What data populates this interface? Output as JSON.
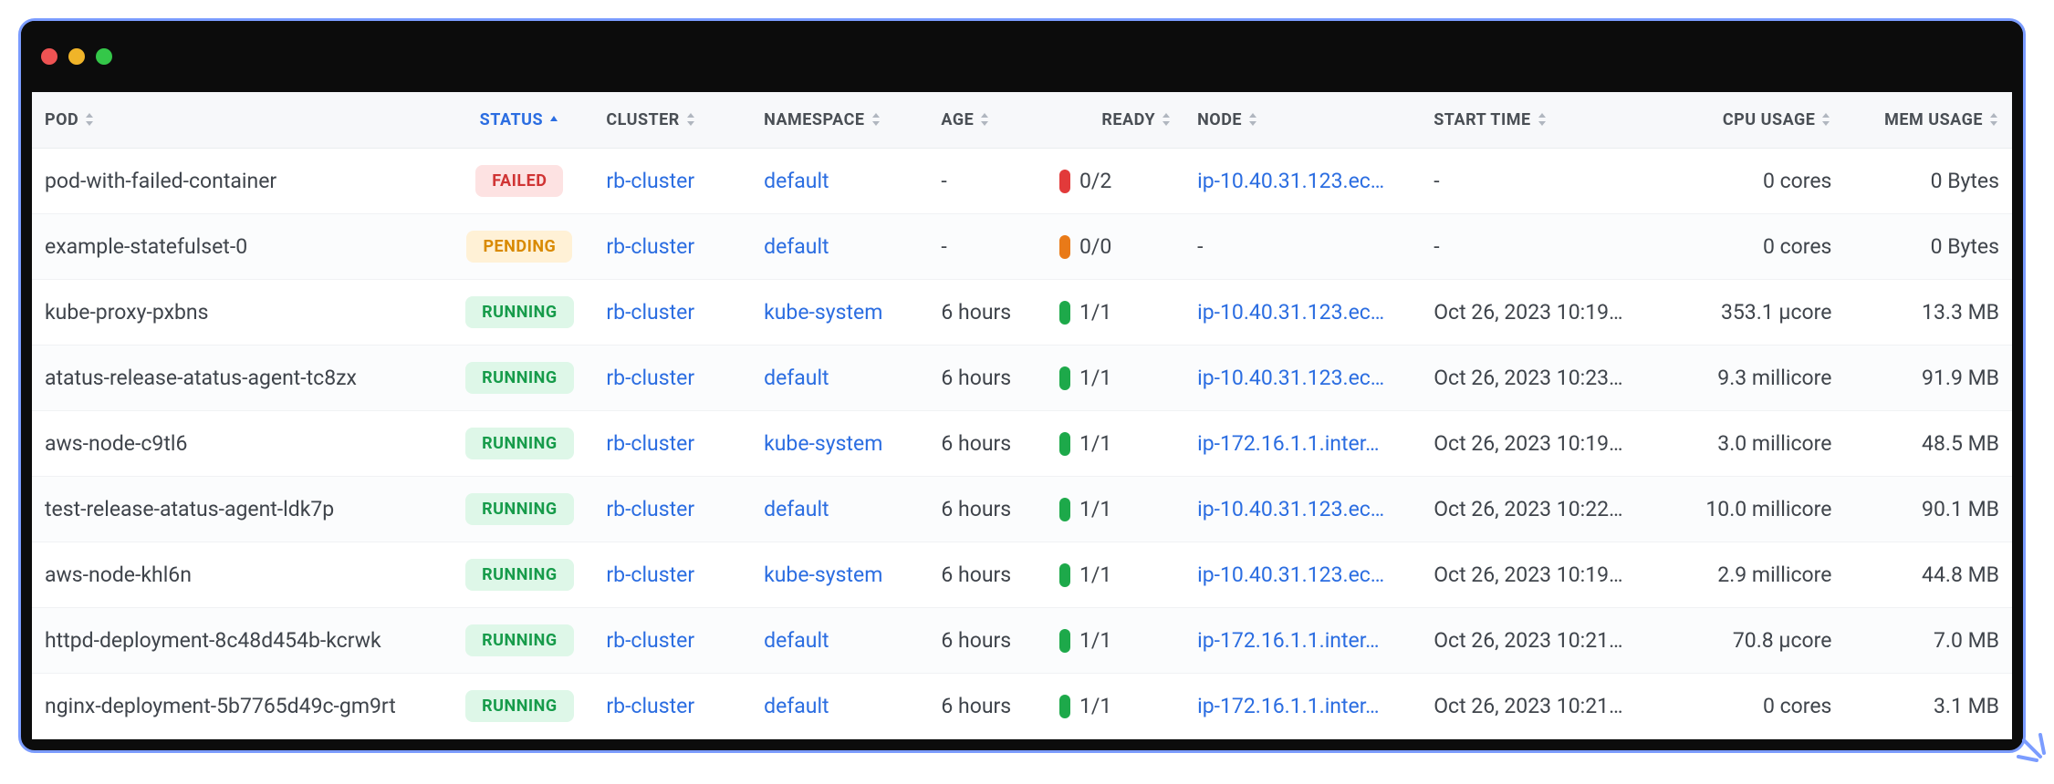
{
  "window": {
    "dot_colors": {
      "red": "#ee5353",
      "yellow": "#f0b429",
      "green": "#34c749"
    }
  },
  "columns": [
    {
      "key": "pod",
      "label": "POD",
      "class": "col-pod",
      "sorted": false
    },
    {
      "key": "status",
      "label": "STATUS",
      "class": "col-status",
      "sorted": "asc"
    },
    {
      "key": "cluster",
      "label": "CLUSTER",
      "class": "col-cluster",
      "sorted": false
    },
    {
      "key": "namespace",
      "label": "NAMESPACE",
      "class": "col-namespace",
      "sorted": false
    },
    {
      "key": "age",
      "label": "AGE",
      "class": "col-age",
      "sorted": false
    },
    {
      "key": "ready",
      "label": "READY",
      "class": "col-ready",
      "sorted": false
    },
    {
      "key": "node",
      "label": "NODE",
      "class": "col-node",
      "sorted": false
    },
    {
      "key": "start",
      "label": "START TIME",
      "class": "col-start",
      "sorted": false
    },
    {
      "key": "cpu",
      "label": "CPU USAGE",
      "class": "col-cpu",
      "sorted": false
    },
    {
      "key": "mem",
      "label": "MEM USAGE",
      "class": "col-mem",
      "sorted": false
    }
  ],
  "status_styles": {
    "FAILED": {
      "bg": "#fde2e2",
      "fg": "#d03434"
    },
    "PENDING": {
      "bg": "#fff1d6",
      "fg": "#d98a00"
    },
    "RUNNING": {
      "bg": "#def7e8",
      "fg": "#169b4a"
    }
  },
  "ready_pill_colors": {
    "red": "#e23a3a",
    "orange": "#e97a18",
    "green": "#1da94a"
  },
  "rows": [
    {
      "pod": "pod-with-failed-container",
      "status": "FAILED",
      "cluster": "rb-cluster",
      "namespace": "default",
      "age": "-",
      "ready": "0/2",
      "ready_color": "red",
      "node": "ip-10.40.31.123.ec…",
      "start": "-",
      "cpu": "0 cores",
      "mem": "0 Bytes"
    },
    {
      "pod": "example-statefulset-0",
      "status": "PENDING",
      "cluster": "rb-cluster",
      "namespace": "default",
      "age": "-",
      "ready": "0/0",
      "ready_color": "orange",
      "node": "-",
      "start": "-",
      "cpu": "0 cores",
      "mem": "0 Bytes"
    },
    {
      "pod": "kube-proxy-pxbns",
      "status": "RUNNING",
      "cluster": "rb-cluster",
      "namespace": "kube-system",
      "age": "6 hours",
      "ready": "1/1",
      "ready_color": "green",
      "node": "ip-10.40.31.123.ec…",
      "start": "Oct 26, 2023 10:19…",
      "cpu": "353.1 µcore",
      "mem": "13.3 MB"
    },
    {
      "pod": "atatus-release-atatus-agent-tc8zx",
      "status": "RUNNING",
      "cluster": "rb-cluster",
      "namespace": "default",
      "age": "6 hours",
      "ready": "1/1",
      "ready_color": "green",
      "node": "ip-10.40.31.123.ec…",
      "start": "Oct 26, 2023 10:23…",
      "cpu": "9.3 millicore",
      "mem": "91.9 MB"
    },
    {
      "pod": "aws-node-c9tl6",
      "status": "RUNNING",
      "cluster": "rb-cluster",
      "namespace": "kube-system",
      "age": "6 hours",
      "ready": "1/1",
      "ready_color": "green",
      "node": "ip-172.16.1.1.inter…",
      "start": "Oct 26, 2023 10:19…",
      "cpu": "3.0 millicore",
      "mem": "48.5 MB"
    },
    {
      "pod": "test-release-atatus-agent-ldk7p",
      "status": "RUNNING",
      "cluster": "rb-cluster",
      "namespace": "default",
      "age": "6 hours",
      "ready": "1/1",
      "ready_color": "green",
      "node": "ip-10.40.31.123.ec…",
      "start": "Oct 26, 2023 10:22…",
      "cpu": "10.0 millicore",
      "mem": "90.1 MB"
    },
    {
      "pod": "aws-node-khl6n",
      "status": "RUNNING",
      "cluster": "rb-cluster",
      "namespace": "kube-system",
      "age": "6 hours",
      "ready": "1/1",
      "ready_color": "green",
      "node": "ip-10.40.31.123.ec…",
      "start": "Oct 26, 2023 10:19…",
      "cpu": "2.9 millicore",
      "mem": "44.8 MB"
    },
    {
      "pod": "httpd-deployment-8c48d454b-kcrwk",
      "status": "RUNNING",
      "cluster": "rb-cluster",
      "namespace": "default",
      "age": "6 hours",
      "ready": "1/1",
      "ready_color": "green",
      "node": "ip-172.16.1.1.inter…",
      "start": "Oct 26, 2023 10:21…",
      "cpu": "70.8 µcore",
      "mem": "7.0 MB"
    },
    {
      "pod": "nginx-deployment-5b7765d49c-gm9rt",
      "status": "RUNNING",
      "cluster": "rb-cluster",
      "namespace": "default",
      "age": "6 hours",
      "ready": "1/1",
      "ready_color": "green",
      "node": "ip-172.16.1.1.inter…",
      "start": "Oct 26, 2023 10:21…",
      "cpu": "0 cores",
      "mem": "3.1 MB"
    }
  ],
  "theme": {
    "frame_border": "#7b9cff",
    "titlebar_bg": "#0c0c0c",
    "header_bg": "#f7f8fa",
    "header_fg": "#4a4f55",
    "header_active_fg": "#2b6de1",
    "link_color": "#2b6de1",
    "row_border": "#f0f2f4",
    "text_color": "#3f444b",
    "font_size_header_pt": 13,
    "font_size_body_pt": 17
  }
}
